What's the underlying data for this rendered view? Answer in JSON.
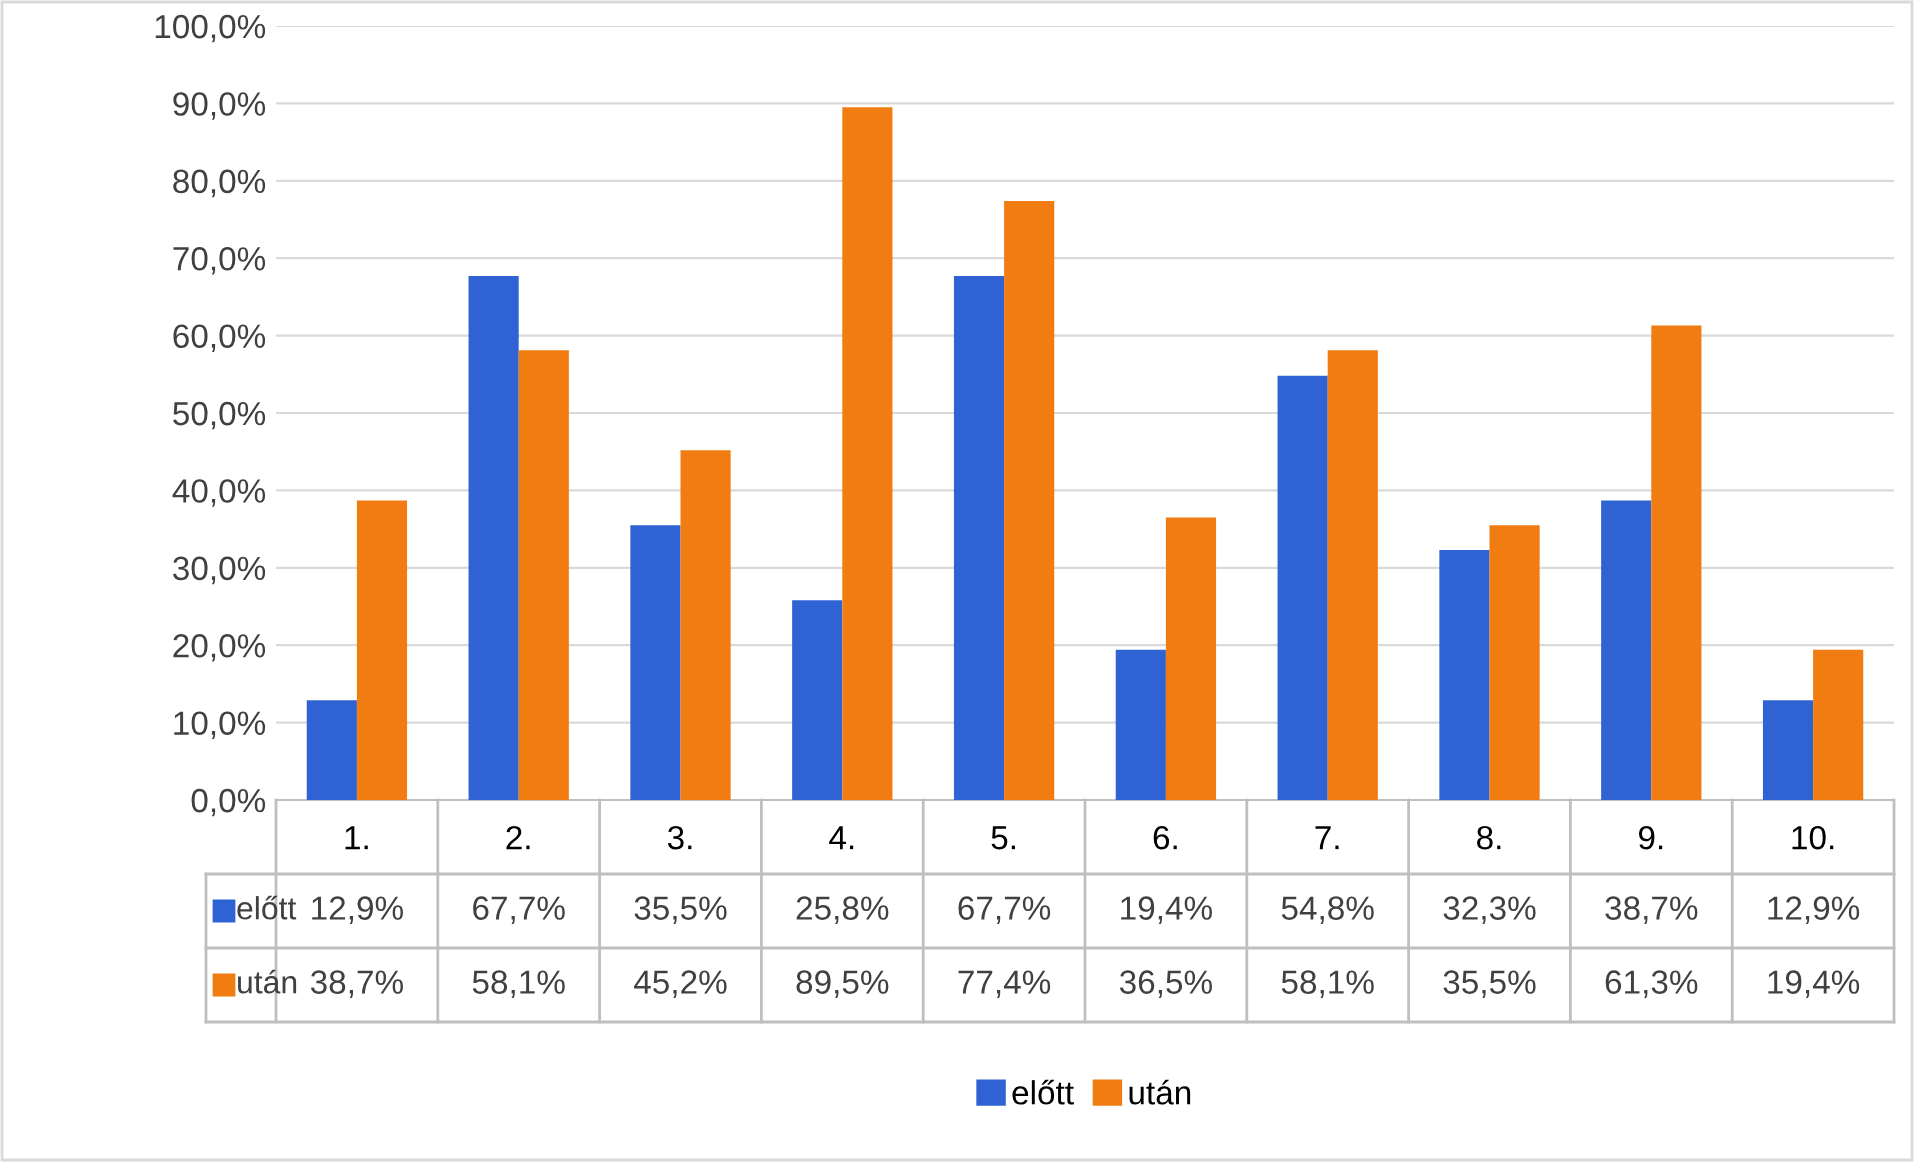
{
  "chart_data": {
    "type": "bar",
    "categories": [
      "1.",
      "2.",
      "3.",
      "4.",
      "5.",
      "6.",
      "7.",
      "8.",
      "9.",
      "10."
    ],
    "series": [
      {
        "name": "előtt",
        "color": "#2f63d3",
        "values": [
          12.9,
          67.7,
          35.5,
          25.8,
          67.7,
          19.4,
          54.8,
          32.3,
          38.7,
          12.9
        ],
        "value_labels": [
          "12,9%",
          "67,7%",
          "35,5%",
          "25,8%",
          "67,7%",
          "19,4%",
          "54,8%",
          "32,3%",
          "38,7%",
          "12,9%"
        ]
      },
      {
        "name": "után",
        "color": "#f07c12",
        "values": [
          38.7,
          58.1,
          45.2,
          89.5,
          77.4,
          36.5,
          58.1,
          35.5,
          61.3,
          19.4
        ],
        "value_labels": [
          "38,7%",
          "58,1%",
          "45,2%",
          "89,5%",
          "77,4%",
          "36,5%",
          "58,1%",
          "35,5%",
          "61,3%",
          "19,4%"
        ]
      }
    ],
    "ylim": [
      0,
      100
    ],
    "yticks": [
      {
        "value": 0,
        "label": "0,0%"
      },
      {
        "value": 10,
        "label": "10,0%"
      },
      {
        "value": 20,
        "label": "20,0%"
      },
      {
        "value": 30,
        "label": "30,0%"
      },
      {
        "value": 40,
        "label": "40,0%"
      },
      {
        "value": 50,
        "label": "50,0%"
      },
      {
        "value": 60,
        "label": "60,0%"
      },
      {
        "value": 70,
        "label": "70,0%"
      },
      {
        "value": 80,
        "label": "80,0%"
      },
      {
        "value": 90,
        "label": "90,0%"
      },
      {
        "value": 100,
        "label": "100,0%"
      }
    ],
    "grid": "y",
    "legend": "bottom"
  }
}
